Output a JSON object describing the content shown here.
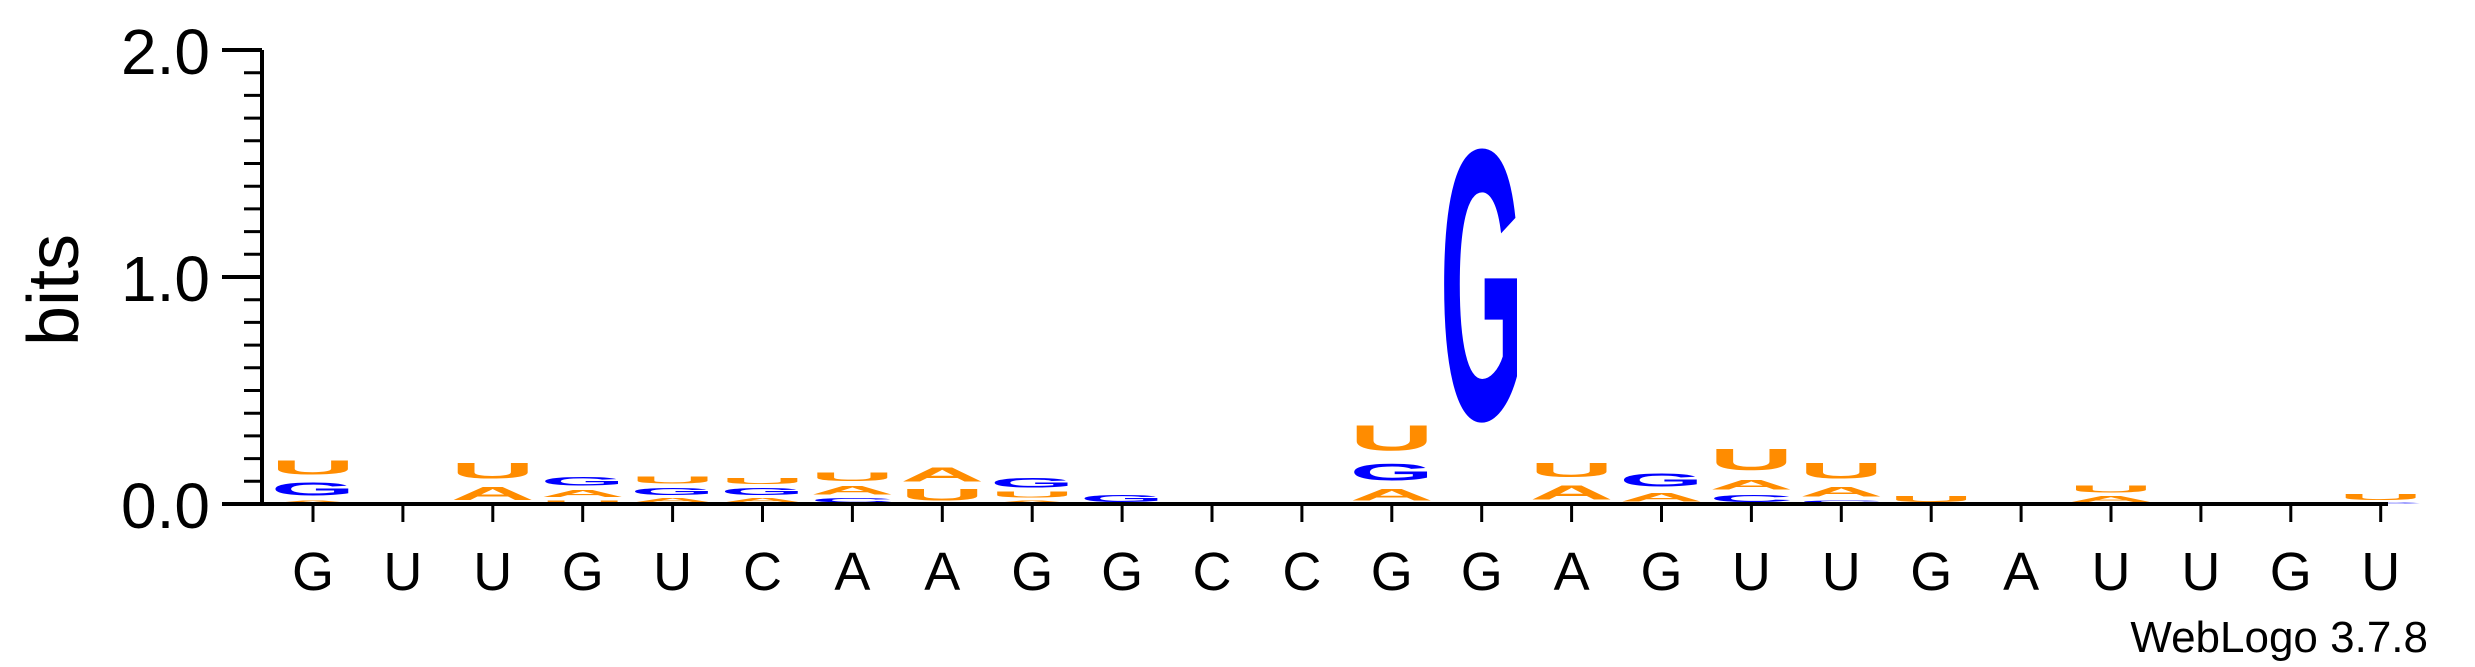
{
  "chart_data": {
    "type": "sequence-logo",
    "ylabel": "bits",
    "ylim": [
      0,
      2.0
    ],
    "yticks": [
      "0.0",
      "1.0",
      "2.0"
    ],
    "positions": [
      "G",
      "U",
      "U",
      "G",
      "U",
      "C",
      "A",
      "A",
      "G",
      "G",
      "C",
      "C",
      "G",
      "G",
      "A",
      "G",
      "U",
      "U",
      "G",
      "A",
      "U",
      "U",
      "G",
      "U"
    ],
    "colors": {
      "A": "#ff8c00",
      "U": "#ff8c00",
      "G": "#0000ff",
      "C": "#0000ff"
    },
    "stacks": [
      [
        {
          "b": "A",
          "h": 0.02
        },
        {
          "b": "G",
          "h": 0.09
        },
        {
          "b": "U",
          "h": 0.1
        }
      ],
      [],
      [
        {
          "b": "A",
          "h": 0.09
        },
        {
          "b": "U",
          "h": 0.11
        }
      ],
      [
        {
          "b": "U",
          "h": 0.02
        },
        {
          "b": "A",
          "h": 0.05
        },
        {
          "b": "G",
          "h": 0.06
        }
      ],
      [
        {
          "b": "A",
          "h": 0.03
        },
        {
          "b": "G",
          "h": 0.05
        },
        {
          "b": "U",
          "h": 0.05
        }
      ],
      [
        {
          "b": "A",
          "h": 0.03
        },
        {
          "b": "G",
          "h": 0.05
        },
        {
          "b": "U",
          "h": 0.04
        }
      ],
      [
        {
          "b": "C",
          "h": 0.03
        },
        {
          "b": "A",
          "h": 0.06
        },
        {
          "b": "U",
          "h": 0.06
        }
      ],
      [
        {
          "b": "U",
          "h": 0.08
        },
        {
          "b": "A",
          "h": 0.1
        }
      ],
      [
        {
          "b": "A",
          "h": 0.02
        },
        {
          "b": "U",
          "h": 0.04
        },
        {
          "b": "G",
          "h": 0.07
        }
      ],
      [
        {
          "b": "G",
          "h": 0.05
        }
      ],
      [],
      [],
      [
        {
          "b": "A",
          "h": 0.08
        },
        {
          "b": "G",
          "h": 0.12
        },
        {
          "b": "U",
          "h": 0.18
        }
      ],
      [
        {
          "b": "G",
          "h": 1.91
        }
      ],
      [
        {
          "b": "A",
          "h": 0.1
        },
        {
          "b": "U",
          "h": 0.1
        }
      ],
      [
        {
          "b": "A",
          "h": 0.06
        },
        {
          "b": "G",
          "h": 0.09
        }
      ],
      [
        {
          "b": "C",
          "h": 0.05
        },
        {
          "b": "A",
          "h": 0.07
        },
        {
          "b": "U",
          "h": 0.15
        }
      ],
      [
        {
          "b": "C",
          "h": 0.02
        },
        {
          "b": "A",
          "h": 0.07
        },
        {
          "b": "U",
          "h": 0.11
        }
      ],
      [
        {
          "b": "U",
          "h": 0.04
        }
      ],
      [
        {
          "b": "U",
          "h": 0.01
        }
      ],
      [
        {
          "b": "A",
          "h": 0.04
        },
        {
          "b": "U",
          "h": 0.05
        }
      ],
      [
        {
          "b": "A",
          "h": 0.01
        }
      ],
      [],
      [
        {
          "b": "C",
          "h": 0.01
        },
        {
          "b": "U",
          "h": 0.04
        }
      ]
    ]
  },
  "footer": {
    "credit": "WebLogo 3.7.8"
  }
}
